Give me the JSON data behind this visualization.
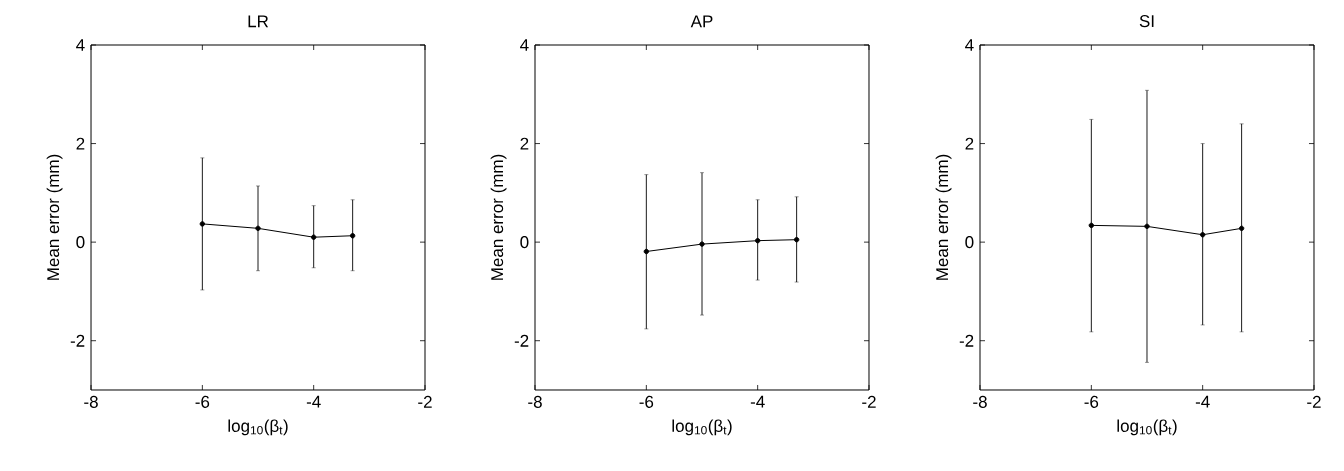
{
  "chart_data": [
    {
      "type": "line",
      "title": "LR",
      "xlabel": "log$_{10}$(β$_{t}$)",
      "ylabel": "Mean error (mm)",
      "x": [
        -6,
        -5,
        -4,
        -3.3
      ],
      "values": [
        0.37,
        0.28,
        0.1,
        0.13
      ],
      "errors": [
        [
          -0.97,
          1.71
        ],
        [
          -0.58,
          1.14
        ],
        [
          -0.52,
          0.74
        ],
        [
          -0.58,
          0.86
        ]
      ],
      "color": "#000000",
      "marker": "circle",
      "xlim": [
        -8,
        -2
      ],
      "ylim": [
        -3,
        4
      ],
      "xticks": [
        -8,
        -6,
        -4,
        -2
      ],
      "yticks": [
        -2,
        0,
        2,
        4
      ]
    },
    {
      "type": "line",
      "title": "AP",
      "xlabel": "log$_{10}$(β$_{t}$)",
      "ylabel": "Mean error (mm)",
      "x": [
        -6,
        -5,
        -4,
        -3.3
      ],
      "values": [
        -0.19,
        -0.04,
        0.03,
        0.05
      ],
      "errors": [
        [
          -1.76,
          1.37
        ],
        [
          -1.48,
          1.41
        ],
        [
          -0.77,
          0.86
        ],
        [
          -0.81,
          0.92
        ]
      ],
      "color": "#000000",
      "marker": "circle",
      "xlim": [
        -8,
        -2
      ],
      "ylim": [
        -3,
        4
      ],
      "xticks": [
        -8,
        -6,
        -4,
        -2
      ],
      "yticks": [
        -2,
        0,
        2,
        4
      ]
    },
    {
      "type": "line",
      "title": "SI",
      "xlabel": "log$_{10}$(β$_{t}$)",
      "ylabel": "Mean error (mm)",
      "x": [
        -6,
        -5,
        -4,
        -3.3
      ],
      "values": [
        0.34,
        0.32,
        0.15,
        0.28
      ],
      "errors": [
        [
          -1.82,
          2.49
        ],
        [
          -2.44,
          3.08
        ],
        [
          -1.68,
          2.0
        ],
        [
          -1.82,
          2.4
        ]
      ],
      "color": "#000000",
      "marker": "circle",
      "xlim": [
        -8,
        -2
      ],
      "ylim": [
        -3,
        4
      ],
      "xticks": [
        -8,
        -6,
        -4,
        -2
      ],
      "yticks": [
        -2,
        0,
        2,
        4
      ]
    }
  ]
}
